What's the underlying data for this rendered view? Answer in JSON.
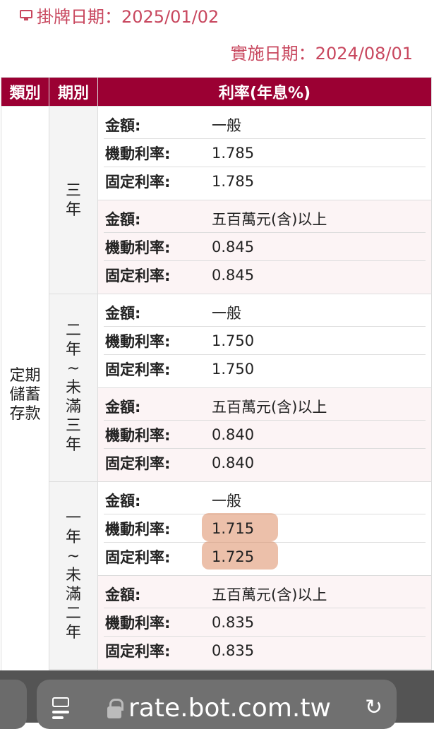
{
  "header": {
    "publish": "掛牌日期：2025/01/02",
    "effective": "實施日期：2024/08/01"
  },
  "table": {
    "columns": [
      "類別",
      "期別",
      "利率(年息%)"
    ],
    "category": "定期儲蓄存款",
    "periods": [
      {
        "label": "三年",
        "groups": [
          {
            "rows": [
              [
                "金額:",
                "一般"
              ],
              [
                "機動利率:",
                "1.785"
              ],
              [
                "固定利率:",
                "1.785"
              ]
            ]
          },
          {
            "rows": [
              [
                "金額:",
                "五百萬元(含)以上"
              ],
              [
                "機動利率:",
                "0.845"
              ],
              [
                "固定利率:",
                "0.845"
              ]
            ]
          }
        ]
      },
      {
        "label": "二年~未滿三年",
        "groups": [
          {
            "rows": [
              [
                "金額:",
                "一般"
              ],
              [
                "機動利率:",
                "1.750"
              ],
              [
                "固定利率:",
                "1.750"
              ]
            ]
          },
          {
            "rows": [
              [
                "金額:",
                "五百萬元(含)以上"
              ],
              [
                "機動利率:",
                "0.840"
              ],
              [
                "固定利率:",
                "0.840"
              ]
            ]
          }
        ]
      },
      {
        "label": "一年~未滿二年",
        "groups": [
          {
            "rows": [
              [
                "金額:",
                "一般"
              ],
              [
                "機動利率:",
                "1.715"
              ],
              [
                "固定利率:",
                "1.725"
              ]
            ],
            "highlighted": [
              1,
              2
            ]
          },
          {
            "rows": [
              [
                "金額:",
                "五百萬元(含)以上"
              ],
              [
                "機動利率:",
                "0.835"
              ],
              [
                "固定利率:",
                "0.835"
              ]
            ]
          }
        ]
      }
    ]
  },
  "browser": {
    "url": "rate.bot.com.tw"
  },
  "colors": {
    "accent": "#9b0033",
    "date_text": "#c8475e",
    "highlight": "#dc8c64"
  }
}
